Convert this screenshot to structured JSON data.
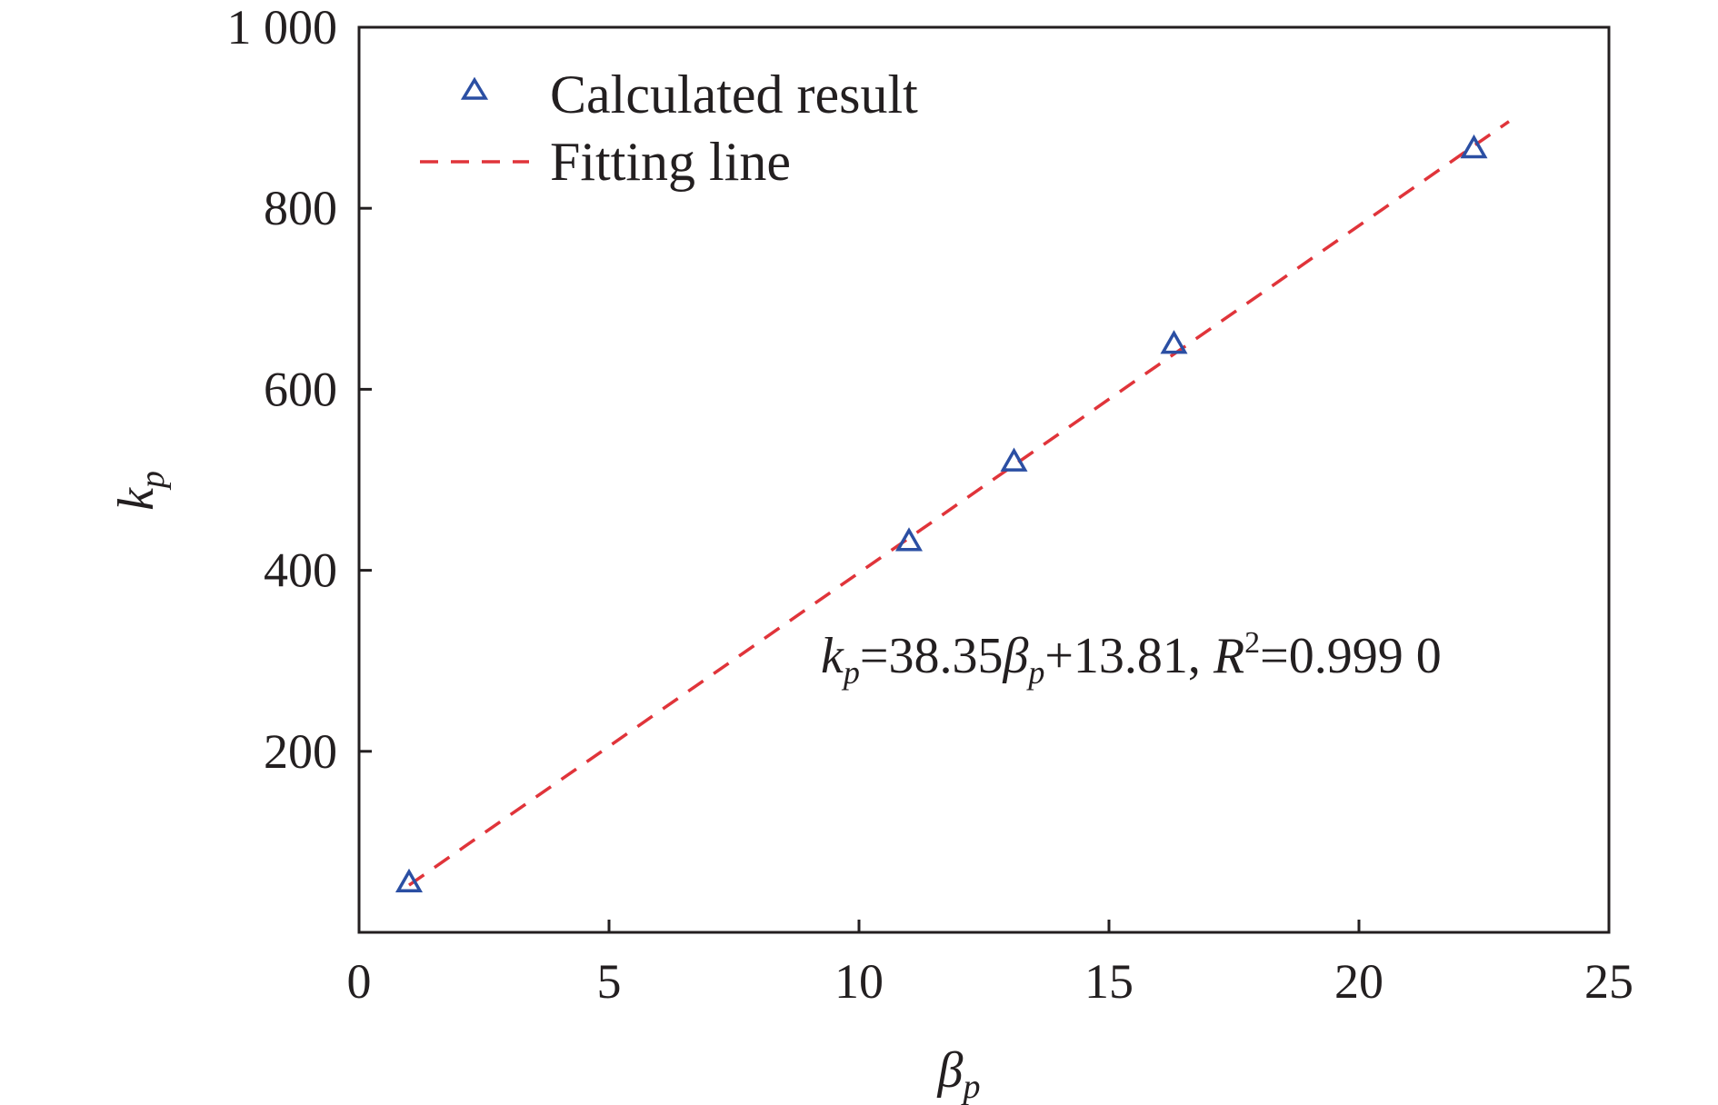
{
  "chart_data": {
    "type": "scatter",
    "xlabel": {
      "main": "β",
      "sub": "p"
    },
    "ylabel": {
      "main": "k",
      "sub": "p"
    },
    "xlim": [
      0,
      25
    ],
    "ylim": [
      0,
      1000
    ],
    "x_ticks": [
      0,
      5,
      10,
      15,
      20,
      25
    ],
    "x_tick_labels": [
      "0",
      "5",
      "10",
      "15",
      "20",
      "25"
    ],
    "y_ticks": [
      200,
      400,
      600,
      800,
      1000
    ],
    "y_tick_labels": [
      "200",
      "400",
      "600",
      "800",
      "1 000"
    ],
    "grid": false,
    "legend_position": "top-left",
    "series": [
      {
        "name": "Calculated result",
        "kind": "scatter",
        "marker": "triangle-open",
        "color": "#2b4fa3",
        "x": [
          1.0,
          11.0,
          13.1,
          16.3,
          22.3
        ],
        "y": [
          55,
          432,
          520,
          650,
          866
        ]
      },
      {
        "name": "Fitting line",
        "kind": "line",
        "style": "dashed",
        "color": "#e0343a",
        "x": [
          1.0,
          23.0
        ],
        "y": [
          52.16,
          895.86
        ]
      }
    ],
    "annotation": {
      "k": "k",
      "k_sub": "p",
      "eq1": "=38.35",
      "beta": "β",
      "beta_sub": "p",
      "eq2": "+13.81, ",
      "r": "R",
      "r_sup": "2",
      "eq3": "=0.999 0"
    }
  }
}
